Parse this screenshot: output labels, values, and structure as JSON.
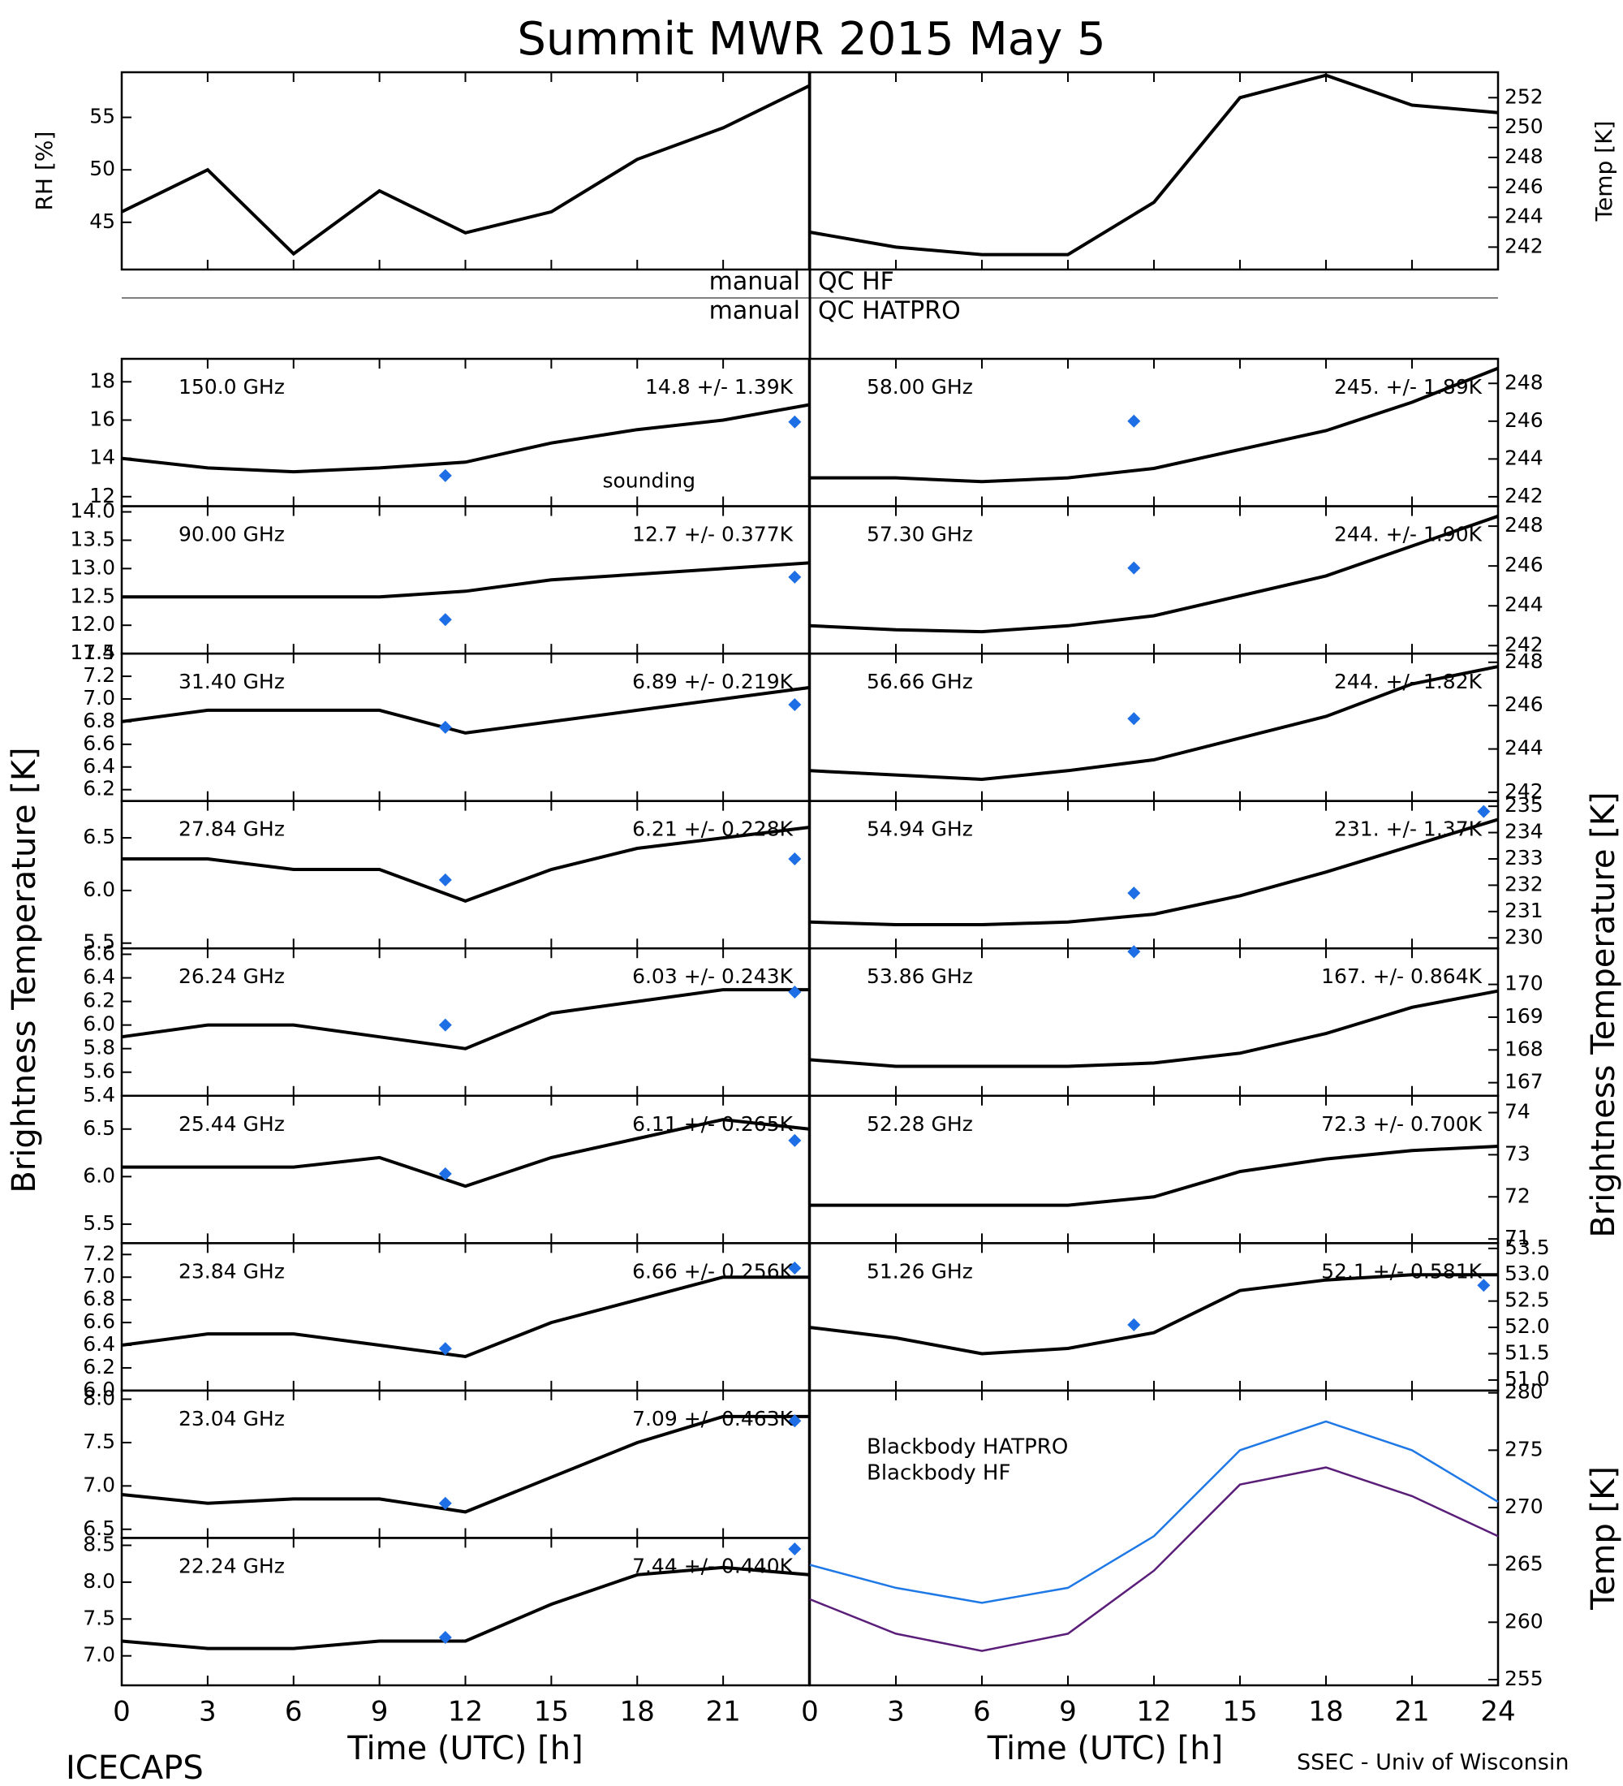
{
  "title": "Summit MWR 2015 May  5",
  "qc": [
    {
      "left": "manual",
      "right": "QC HF"
    },
    {
      "left": "manual",
      "right": "QC HATPRO"
    }
  ],
  "brightness_label": "Brightness Temperature [K]",
  "footer_left": "ICECAPS",
  "footer_right": "SSEC - Univ of Wisconsin",
  "chart_data": [
    {
      "type": "line",
      "ylabel": "RH [%]",
      "yaxis": "left",
      "x": [
        0,
        3,
        6,
        9,
        12,
        15,
        18,
        21,
        24
      ],
      "series": [
        {
          "color": "#000000",
          "values": [
            46,
            50,
            42,
            48,
            44,
            46,
            51,
            54,
            58
          ]
        }
      ],
      "xlim": [
        0,
        24
      ],
      "xticks": [
        0,
        3,
        6,
        9,
        12,
        15,
        18,
        21
      ],
      "ylim": [
        40.5,
        59.3
      ],
      "yticks": [
        45,
        50,
        55
      ]
    },
    {
      "type": "line",
      "ylabel": "Temp [K]",
      "yaxis": "right",
      "x": [
        0,
        3,
        6,
        9,
        12,
        15,
        18,
        21,
        24
      ],
      "series": [
        {
          "color": "#000000",
          "values": [
            243,
            242,
            241.5,
            241.5,
            245,
            252,
            253.5,
            251.5,
            251
          ]
        }
      ],
      "xlim": [
        0,
        24
      ],
      "xticks": [
        0,
        3,
        6,
        9,
        12,
        15,
        18,
        21,
        24
      ],
      "ylim": [
        240.5,
        253.7
      ],
      "yticks": [
        242,
        244,
        246,
        248,
        250,
        252
      ]
    },
    {
      "type": "line",
      "title": "150.0 GHz",
      "annotation": "14.8 +/- 1.39K",
      "sounding_label": "sounding",
      "yaxis": "left",
      "x": [
        0,
        3,
        6,
        9,
        12,
        15,
        18,
        21,
        24
      ],
      "series": [
        {
          "color": "#000000",
          "values": [
            14,
            13.5,
            13.3,
            13.5,
            13.8,
            14.8,
            15.5,
            16,
            16.8
          ]
        }
      ],
      "sounding": {
        "color": "#1e6ee6",
        "x": [
          11.3,
          23.5
        ],
        "y": [
          13.1,
          15.9
        ]
      },
      "xlim": [
        0,
        24
      ],
      "xticks": [
        0,
        3,
        6,
        9,
        12,
        15,
        18,
        21
      ],
      "ylim": [
        11.5,
        19.2
      ],
      "yticks": [
        12,
        14,
        16,
        18
      ]
    },
    {
      "type": "line",
      "title": "90.00 GHz",
      "annotation": "12.7 +/- 0.377K",
      "yaxis": "left",
      "x": [
        0,
        3,
        6,
        9,
        12,
        15,
        18,
        21,
        24
      ],
      "series": [
        {
          "color": "#000000",
          "values": [
            12.5,
            12.5,
            12.5,
            12.5,
            12.6,
            12.8,
            12.9,
            13.0,
            13.1
          ]
        }
      ],
      "sounding": {
        "color": "#1e6ee6",
        "x": [
          11.3,
          23.5
        ],
        "y": [
          12.1,
          12.85
        ]
      },
      "xlim": [
        0,
        24
      ],
      "xticks": [
        0,
        3,
        6,
        9,
        12,
        15,
        18,
        21
      ],
      "ylim": [
        11.5,
        14.1
      ],
      "yticks": [
        11.5,
        {
          "value": 12,
          "label": "12.0"
        },
        12.5,
        {
          "value": 13,
          "label": "13.0"
        },
        13.5,
        {
          "value": 14,
          "label": "14.0"
        }
      ]
    },
    {
      "type": "line",
      "title": "31.40 GHz",
      "annotation": "6.89 +/- 0.219K",
      "yaxis": "left",
      "x": [
        0,
        3,
        6,
        9,
        12,
        15,
        18,
        21,
        24
      ],
      "series": [
        {
          "color": "#000000",
          "values": [
            6.8,
            6.9,
            6.9,
            6.9,
            6.7,
            6.8,
            6.9,
            7.0,
            7.1
          ]
        }
      ],
      "sounding": {
        "color": "#1e6ee6",
        "x": [
          11.3,
          23.5
        ],
        "y": [
          6.75,
          6.95
        ]
      },
      "xlim": [
        0,
        24
      ],
      "xticks": [
        0,
        3,
        6,
        9,
        12,
        15,
        18,
        21
      ],
      "ylim": [
        6.1,
        7.4
      ],
      "yticks": [
        6.2,
        6.4,
        6.6,
        6.8,
        {
          "value": 7,
          "label": "7.0"
        },
        7.2,
        7.4
      ]
    },
    {
      "type": "line",
      "title": "27.84 GHz",
      "annotation": "6.21 +/- 0.228K",
      "yaxis": "left",
      "x": [
        0,
        3,
        6,
        9,
        12,
        15,
        18,
        21,
        24
      ],
      "series": [
        {
          "color": "#000000",
          "values": [
            6.3,
            6.3,
            6.2,
            6.2,
            5.9,
            6.2,
            6.4,
            6.5,
            6.6
          ]
        }
      ],
      "sounding": {
        "color": "#1e6ee6",
        "x": [
          11.3,
          23.5
        ],
        "y": [
          6.1,
          6.3
        ]
      },
      "xlim": [
        0,
        24
      ],
      "xticks": [
        0,
        3,
        6,
        9,
        12,
        15,
        18,
        21
      ],
      "ylim": [
        5.45,
        6.85
      ],
      "yticks": [
        5.5,
        {
          "value": 6,
          "label": "6.0"
        },
        6.5
      ]
    },
    {
      "type": "line",
      "title": "26.24 GHz",
      "annotation": "6.03 +/- 0.243K",
      "yaxis": "left",
      "x": [
        0,
        3,
        6,
        9,
        12,
        15,
        18,
        21,
        24
      ],
      "series": [
        {
          "color": "#000000",
          "values": [
            5.9,
            6.0,
            6.0,
            5.9,
            5.8,
            6.1,
            6.2,
            6.3,
            6.3
          ]
        }
      ],
      "sounding": {
        "color": "#1e6ee6",
        "x": [
          11.3,
          23.5
        ],
        "y": [
          6.0,
          6.28
        ]
      },
      "xlim": [
        0,
        24
      ],
      "xticks": [
        0,
        3,
        6,
        9,
        12,
        15,
        18,
        21
      ],
      "ylim": [
        5.4,
        6.65
      ],
      "yticks": [
        5.4,
        5.6,
        5.8,
        {
          "value": 6,
          "label": "6.0"
        },
        6.2,
        6.4,
        6.6
      ]
    },
    {
      "type": "line",
      "title": "25.44 GHz",
      "annotation": "6.11 +/- 0.265K",
      "yaxis": "left",
      "x": [
        0,
        3,
        6,
        9,
        12,
        15,
        18,
        21,
        24
      ],
      "series": [
        {
          "color": "#000000",
          "values": [
            6.1,
            6.1,
            6.1,
            6.2,
            5.9,
            6.2,
            6.4,
            6.6,
            6.5
          ]
        }
      ],
      "sounding": {
        "color": "#1e6ee6",
        "x": [
          11.3,
          23.5
        ],
        "y": [
          6.03,
          6.38
        ]
      },
      "xlim": [
        0,
        24
      ],
      "xticks": [
        0,
        3,
        6,
        9,
        12,
        15,
        18,
        21
      ],
      "ylim": [
        5.3,
        6.85
      ],
      "yticks": [
        5.5,
        {
          "value": 6,
          "label": "6.0"
        },
        6.5
      ]
    },
    {
      "type": "line",
      "title": "23.84 GHz",
      "annotation": "6.66 +/- 0.256K",
      "yaxis": "left",
      "x": [
        0,
        3,
        6,
        9,
        12,
        15,
        18,
        21,
        24
      ],
      "series": [
        {
          "color": "#000000",
          "values": [
            6.4,
            6.5,
            6.5,
            6.4,
            6.3,
            6.6,
            6.8,
            7.0,
            7.0
          ]
        }
      ],
      "sounding": {
        "color": "#1e6ee6",
        "x": [
          11.3,
          23.5
        ],
        "y": [
          6.37,
          7.08
        ]
      },
      "xlim": [
        0,
        24
      ],
      "xticks": [
        0,
        3,
        6,
        9,
        12,
        15,
        18,
        21
      ],
      "ylim": [
        6.0,
        7.3
      ],
      "yticks": [
        {
          "value": 6,
          "label": "6.0"
        },
        6.2,
        6.4,
        6.6,
        6.8,
        {
          "value": 7,
          "label": "7.0"
        },
        7.2
      ]
    },
    {
      "type": "line",
      "title": "23.04 GHz",
      "annotation": "7.09 +/- 0.463K",
      "yaxis": "left",
      "x": [
        0,
        3,
        6,
        9,
        12,
        15,
        18,
        21,
        24
      ],
      "series": [
        {
          "color": "#000000",
          "values": [
            6.9,
            6.8,
            6.85,
            6.85,
            6.7,
            7.1,
            7.5,
            7.8,
            7.8
          ]
        }
      ],
      "sounding": {
        "color": "#1e6ee6",
        "x": [
          11.3,
          23.5
        ],
        "y": [
          6.8,
          7.75
        ]
      },
      "xlim": [
        0,
        24
      ],
      "xticks": [
        0,
        3,
        6,
        9,
        12,
        15,
        18,
        21
      ],
      "ylim": [
        6.4,
        8.1
      ],
      "yticks": [
        6.5,
        {
          "value": 7,
          "label": "7.0"
        },
        7.5,
        {
          "value": 8,
          "label": "8.0"
        }
      ]
    },
    {
      "type": "line",
      "title": "22.24 GHz",
      "annotation": "7.44 +/- 0.440K",
      "yaxis": "left",
      "xlabel": "Time (UTC) [h]",
      "xtick_labels": true,
      "x": [
        0,
        3,
        6,
        9,
        12,
        15,
        18,
        21,
        24
      ],
      "series": [
        {
          "color": "#000000",
          "values": [
            7.2,
            7.1,
            7.1,
            7.2,
            7.2,
            7.7,
            8.1,
            8.2,
            8.1
          ]
        }
      ],
      "sounding": {
        "color": "#1e6ee6",
        "x": [
          11.3,
          23.5
        ],
        "y": [
          7.25,
          8.45
        ]
      },
      "xlim": [
        0,
        24
      ],
      "xticks": [
        0,
        3,
        6,
        9,
        12,
        15,
        18,
        21
      ],
      "ylim": [
        6.6,
        8.6
      ],
      "yticks": [
        {
          "value": 7,
          "label": "7.0"
        },
        7.5,
        {
          "value": 8,
          "label": "8.0"
        },
        8.5
      ]
    },
    {
      "type": "line",
      "title": "58.00 GHz",
      "annotation": "245. +/- 1.89K",
      "yaxis": "right",
      "x": [
        0,
        3,
        6,
        9,
        12,
        15,
        18,
        21,
        24
      ],
      "series": [
        {
          "color": "#000000",
          "values": [
            243,
            243,
            242.8,
            243,
            243.5,
            244.5,
            245.5,
            247,
            248.8
          ]
        }
      ],
      "sounding": {
        "color": "#1e6ee6",
        "x": [
          11.3
        ],
        "y": [
          246
        ]
      },
      "xlim": [
        0,
        24
      ],
      "xticks": [
        0,
        3,
        6,
        9,
        12,
        15,
        18,
        21,
        24
      ],
      "ylim": [
        241.5,
        249.3
      ],
      "yticks": [
        242,
        244,
        246,
        248
      ]
    },
    {
      "type": "line",
      "title": "57.30 GHz",
      "annotation": "244. +/- 1.90K",
      "yaxis": "right",
      "x": [
        0,
        3,
        6,
        9,
        12,
        15,
        18,
        21,
        24
      ],
      "series": [
        {
          "color": "#000000",
          "values": [
            243,
            242.8,
            242.7,
            243,
            243.5,
            244.5,
            245.5,
            247,
            248.5
          ]
        }
      ],
      "sounding": {
        "color": "#1e6ee6",
        "x": [
          11.3
        ],
        "y": [
          245.9
        ]
      },
      "xlim": [
        0,
        24
      ],
      "xticks": [
        0,
        3,
        6,
        9,
        12,
        15,
        18,
        21,
        24
      ],
      "ylim": [
        241.6,
        249
      ],
      "yticks": [
        242,
        244,
        246,
        248
      ]
    },
    {
      "type": "line",
      "title": "56.66 GHz",
      "annotation": "244. +/- 1.82K",
      "yaxis": "right",
      "x": [
        0,
        3,
        6,
        9,
        12,
        15,
        18,
        21,
        24
      ],
      "series": [
        {
          "color": "#000000",
          "values": [
            243,
            242.8,
            242.6,
            243,
            243.5,
            244.5,
            245.5,
            247,
            247.8
          ]
        }
      ],
      "sounding": {
        "color": "#1e6ee6",
        "x": [
          11.3
        ],
        "y": [
          245.4
        ]
      },
      "xlim": [
        0,
        24
      ],
      "xticks": [
        0,
        3,
        6,
        9,
        12,
        15,
        18,
        21,
        24
      ],
      "ylim": [
        241.6,
        248.4
      ],
      "yticks": [
        242,
        244,
        246,
        248
      ]
    },
    {
      "type": "line",
      "title": "54.94 GHz",
      "annotation": "231. +/- 1.37K",
      "yaxis": "right",
      "x": [
        0,
        3,
        6,
        9,
        12,
        15,
        18,
        21,
        24
      ],
      "series": [
        {
          "color": "#000000",
          "values": [
            230.6,
            230.5,
            230.5,
            230.6,
            230.9,
            231.6,
            232.5,
            233.5,
            234.5
          ]
        }
      ],
      "sounding": {
        "color": "#1e6ee6",
        "x": [
          11.3,
          23.5
        ],
        "y": [
          231.7,
          234.8
        ]
      },
      "xlim": [
        0,
        24
      ],
      "xticks": [
        0,
        3,
        6,
        9,
        12,
        15,
        18,
        21,
        24
      ],
      "ylim": [
        229.6,
        235.2
      ],
      "yticks": [
        230,
        231,
        232,
        233,
        234,
        235
      ]
    },
    {
      "type": "line",
      "title": "53.86 GHz",
      "annotation": "167. +/- 0.864K",
      "yaxis": "right",
      "x": [
        0,
        3,
        6,
        9,
        12,
        15,
        18,
        21,
        24
      ],
      "series": [
        {
          "color": "#000000",
          "values": [
            167.7,
            167.5,
            167.5,
            167.5,
            167.6,
            167.9,
            168.5,
            169.3,
            169.8
          ]
        }
      ],
      "sounding": {
        "color": "#1e6ee6",
        "x": [
          11.3
        ],
        "y": [
          171
        ]
      },
      "xlim": [
        0,
        24
      ],
      "xticks": [
        0,
        3,
        6,
        9,
        12,
        15,
        18,
        21,
        24
      ],
      "ylim": [
        166.6,
        171.1
      ],
      "yticks": [
        167,
        168,
        169,
        170
      ]
    },
    {
      "type": "line",
      "title": "52.28 GHz",
      "annotation": "72.3 +/- 0.700K",
      "yaxis": "right",
      "x": [
        0,
        3,
        6,
        9,
        12,
        15,
        18,
        21,
        24
      ],
      "series": [
        {
          "color": "#000000",
          "values": [
            71.8,
            71.8,
            71.8,
            71.8,
            72,
            72.6,
            72.9,
            73.1,
            73.2
          ]
        }
      ],
      "xlim": [
        0,
        24
      ],
      "xticks": [
        0,
        3,
        6,
        9,
        12,
        15,
        18,
        21,
        24
      ],
      "ylim": [
        70.9,
        74.4
      ],
      "yticks": [
        71,
        72,
        73,
        74
      ]
    },
    {
      "type": "line",
      "title": "51.26 GHz",
      "annotation": "52.1 +/- 0.581K",
      "yaxis": "right",
      "x": [
        0,
        3,
        6,
        9,
        12,
        15,
        18,
        21,
        24
      ],
      "series": [
        {
          "color": "#000000",
          "values": [
            52.0,
            51.8,
            51.5,
            51.6,
            51.9,
            52.7,
            52.9,
            53.0,
            53.0
          ]
        }
      ],
      "sounding": {
        "color": "#1e6ee6",
        "x": [
          11.3,
          23.5
        ],
        "y": [
          52.05,
          52.8
        ]
      },
      "xlim": [
        0,
        24
      ],
      "xticks": [
        0,
        3,
        6,
        9,
        12,
        15,
        18,
        21,
        24
      ],
      "ylim": [
        50.8,
        53.6
      ],
      "yticks": [
        {
          "value": 51,
          "label": "51.0"
        },
        51.5,
        {
          "value": 52,
          "label": "52.0"
        },
        52.5,
        {
          "value": 53,
          "label": "53.0"
        },
        53.5
      ]
    },
    {
      "type": "line",
      "ylabel": "Temp [K]",
      "yaxis": "right",
      "xlabel": "Time (UTC) [h]",
      "xtick_labels": true,
      "x": [
        0,
        3,
        6,
        9,
        12,
        15,
        18,
        21,
        24
      ],
      "series": [
        {
          "name": "Blackbody HATPRO",
          "color": "#1e78e6",
          "values": [
            265,
            263,
            261.7,
            263,
            267.5,
            275,
            277.5,
            275,
            270.5
          ]
        },
        {
          "name": "Blackbody HF",
          "color": "#5a1e78",
          "values": [
            262,
            259,
            257.5,
            259,
            264.5,
            272,
            273.5,
            271,
            267.5
          ]
        }
      ],
      "xlim": [
        0,
        24
      ],
      "xticks": [
        0,
        3,
        6,
        9,
        12,
        15,
        18,
        21,
        24
      ],
      "ylim": [
        254.5,
        280.2
      ],
      "yticks": [
        255,
        260,
        265,
        270,
        275,
        280
      ]
    }
  ]
}
